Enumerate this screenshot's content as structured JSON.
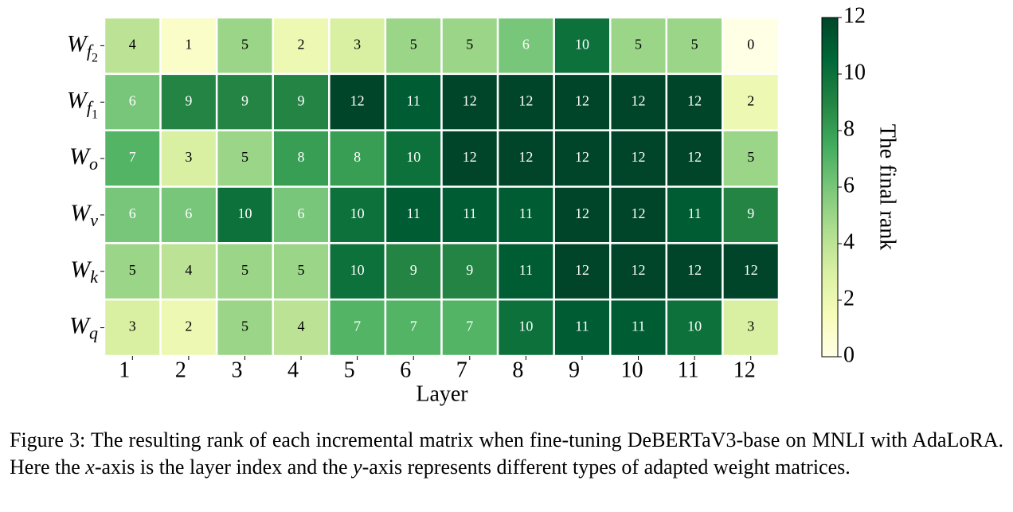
{
  "chart_data": {
    "type": "heatmap",
    "categories": [
      "1",
      "2",
      "3",
      "4",
      "5",
      "6",
      "7",
      "8",
      "9",
      "10",
      "11",
      "12"
    ],
    "x_label": "Layer",
    "rows": [
      {
        "base": "W",
        "sub": "f",
        "subsub": "2"
      },
      {
        "base": "W",
        "sub": "f",
        "subsub": "1"
      },
      {
        "base": "W",
        "sub": "o"
      },
      {
        "base": "W",
        "sub": "v"
      },
      {
        "base": "W",
        "sub": "k"
      },
      {
        "base": "W",
        "sub": "q"
      }
    ],
    "values": [
      [
        4,
        1,
        5,
        2,
        3,
        5,
        5,
        6,
        10,
        5,
        5,
        0
      ],
      [
        6,
        9,
        9,
        9,
        12,
        11,
        12,
        12,
        12,
        12,
        12,
        2
      ],
      [
        7,
        3,
        5,
        8,
        8,
        10,
        12,
        12,
        12,
        12,
        12,
        5
      ],
      [
        6,
        6,
        10,
        6,
        10,
        11,
        11,
        11,
        12,
        12,
        11,
        9
      ],
      [
        5,
        4,
        5,
        5,
        10,
        9,
        9,
        11,
        12,
        12,
        12,
        12
      ],
      [
        3,
        2,
        5,
        4,
        7,
        7,
        7,
        10,
        11,
        11,
        10,
        3
      ]
    ],
    "colormap": [
      "#ffffe5",
      "#f7fcb9",
      "#d9f0a3",
      "#addd8e",
      "#78c679",
      "#41ab5d",
      "#238443",
      "#006837",
      "#004529"
    ],
    "clim": [
      0,
      12
    ],
    "cticks": [
      0,
      2,
      4,
      6,
      8,
      10,
      12
    ],
    "colorbar_label": "The final rank",
    "caption": [
      "Figure 3: The resulting rank of each incremental matrix when fine-tuning DeBERTaV3-base on MNLI with AdaLoRA. Here the ",
      "x",
      "-axis is the layer index and the ",
      "y",
      "-axis represents different types of adapted weight matrices."
    ]
  }
}
